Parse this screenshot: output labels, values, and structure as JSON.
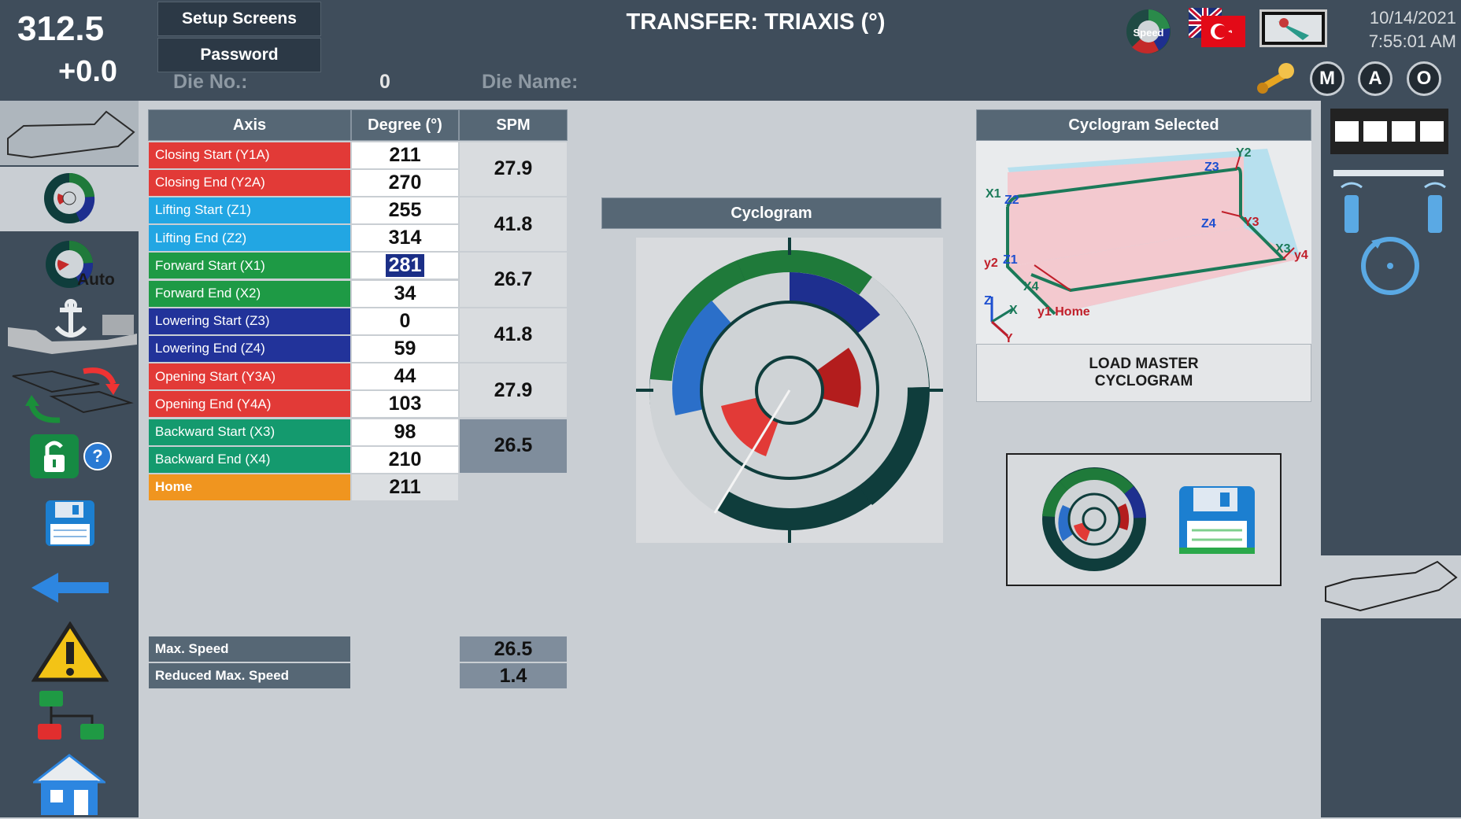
{
  "header": {
    "speed_value": "312.5",
    "offset_value": "+0.0",
    "setup_screens_label": "Setup Screens",
    "password_label": "Password",
    "die_no_label": "Die No.:",
    "die_no_value": "0",
    "die_name_label": "Die Name:",
    "title": "TRANSFER: TRIAXIS (°)",
    "date": "10/14/2021",
    "time": "7:55:01 AM",
    "speed_icon_label": "Speed",
    "mode_buttons": [
      "M",
      "A",
      "O"
    ]
  },
  "left_sidebar": {
    "auto_label": "Auto"
  },
  "table": {
    "headers": {
      "axis": "Axis",
      "degree": "Degree (°)",
      "spm": "SPM"
    },
    "rows": [
      {
        "label": "Closing Start (Y1A)",
        "degree": "211",
        "color": "#e23a37"
      },
      {
        "label": "Closing End (Y2A)",
        "degree": "270",
        "color": "#e23a37"
      },
      {
        "label": "Lifting Start (Z1)",
        "degree": "255",
        "color": "#22a6e3"
      },
      {
        "label": "Lifting End (Z2)",
        "degree": "314",
        "color": "#22a6e3"
      },
      {
        "label": "Forward Start (X1)",
        "degree": "281",
        "color": "#1e9a45"
      },
      {
        "label": "Forward End (X2)",
        "degree": "34",
        "color": "#1e9a45"
      },
      {
        "label": "Lowering Start (Z3)",
        "degree": "0",
        "color": "#22339a"
      },
      {
        "label": "Lowering End (Z4)",
        "degree": "59",
        "color": "#22339a"
      },
      {
        "label": "Opening Start (Y3A)",
        "degree": "44",
        "color": "#e23a37"
      },
      {
        "label": "Opening End (Y4A)",
        "degree": "103",
        "color": "#e23a37"
      },
      {
        "label": "Backward Start (X3)",
        "degree": "98",
        "color": "#149a6e"
      },
      {
        "label": "Backward End (X4)",
        "degree": "210",
        "color": "#149a6e"
      },
      {
        "label": "Home",
        "degree": "211",
        "color": "#f0951f"
      }
    ],
    "spm_values": [
      "27.9",
      "41.8",
      "26.7",
      "41.8",
      "27.9",
      "26.5"
    ],
    "selected_degree_row": 4
  },
  "speed_limits": {
    "max_speed_label": "Max. Speed",
    "max_speed_value": "26.5",
    "reduced_speed_label": "Reduced Max. Speed",
    "reduced_speed_value": "1.4"
  },
  "cyclogram": {
    "title": "Cyclogram"
  },
  "cyclogram_selected": {
    "title": "Cyclogram Selected",
    "path_labels": [
      "X1",
      "Z2",
      "Z3",
      "Y2",
      "Z4",
      "Y3",
      "X3",
      "y4",
      "y2",
      "Z1",
      "X4",
      "y1 Home",
      "Z",
      "X",
      "Y"
    ],
    "load_master_line1": "LOAD MASTER",
    "load_master_line2": "CYCLOGRAM"
  },
  "colors": {
    "header_bg": "#3f4d5b",
    "panel_bg": "#c9ced3",
    "table_header": "#566775",
    "spm_highlight": "#7f8d9c",
    "ring_dark": "#0f3d3c",
    "ring_green": "#1f7a3a",
    "ring_blue": "#1e2f8f",
    "ring_red": "#b31d1d",
    "ring_light_blue": "#2b6fc9"
  }
}
